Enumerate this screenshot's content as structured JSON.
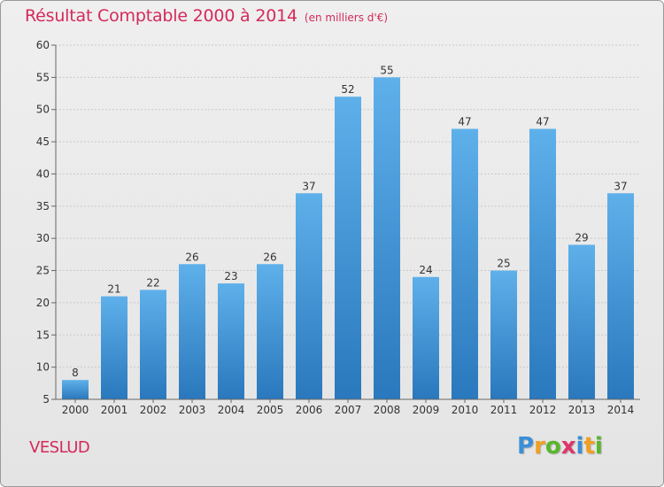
{
  "chart_data": {
    "type": "bar",
    "title": "Résultat Comptable 2000 à 2014",
    "subtitle": "(en milliers d'€)",
    "categories": [
      "2000",
      "2001",
      "2002",
      "2003",
      "2004",
      "2005",
      "2006",
      "2007",
      "2008",
      "2009",
      "2010",
      "2011",
      "2012",
      "2013",
      "2014"
    ],
    "values": [
      8,
      21,
      22,
      26,
      23,
      26,
      37,
      52,
      55,
      24,
      47,
      25,
      47,
      29,
      37
    ],
    "ylim": [
      5,
      60
    ],
    "yticks": [
      5,
      10,
      15,
      20,
      25,
      30,
      35,
      40,
      45,
      50,
      55,
      60
    ],
    "grid": true,
    "legend": "none",
    "colors": {
      "bar_top": "#5eb0ea",
      "bar_bottom": "#2a78bd",
      "title": "#d42a5b"
    }
  },
  "footer": {
    "commune": "VESLUD"
  },
  "logo": {
    "letters": [
      "P",
      "r",
      "o",
      "x",
      "i",
      "t",
      "i"
    ],
    "colors": [
      "#3b8fd6",
      "#f0a020",
      "#59b62c",
      "#e0356a",
      "#3b8fd6",
      "#f0a020",
      "#59b62c"
    ]
  }
}
